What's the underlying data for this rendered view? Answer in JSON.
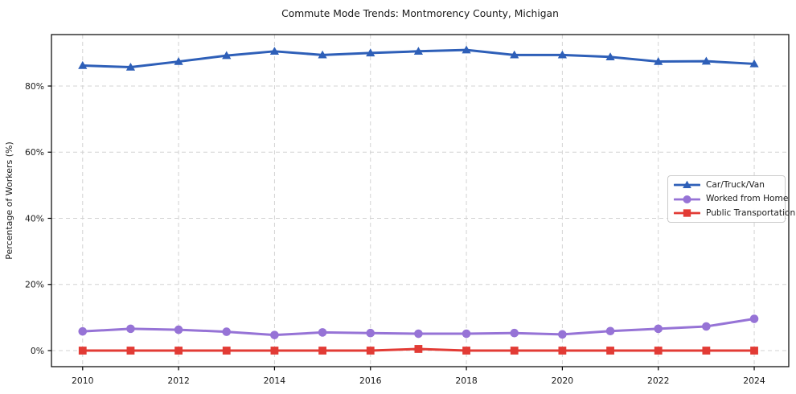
{
  "chart_data": {
    "type": "line",
    "title": "Commute Mode Trends: Montmorency County, Michigan",
    "xlabel": "",
    "ylabel": "Percentage of Workers (%)",
    "x": [
      2010,
      2011,
      2012,
      2013,
      2014,
      2015,
      2016,
      2017,
      2018,
      2019,
      2020,
      2021,
      2022,
      2023,
      2024
    ],
    "x_ticks": [
      2010,
      2012,
      2014,
      2016,
      2018,
      2020,
      2022,
      2024
    ],
    "y_ticks": [
      0,
      20,
      40,
      60,
      80
    ],
    "y_tick_suffix": "%",
    "xlim": [
      2009.35,
      2024.72
    ],
    "ylim": [
      -4.86,
      95.56
    ],
    "grid": true,
    "legend_position": "center-right",
    "series": [
      {
        "name": "Car/Truck/Van",
        "color": "#2e5fb8",
        "marker": "triangle",
        "values": [
          86.2,
          85.7,
          87.4,
          89.2,
          90.5,
          89.4,
          90.0,
          90.5,
          90.9,
          89.4,
          89.4,
          88.8,
          87.4,
          87.5,
          86.7
        ]
      },
      {
        "name": "Worked from Home",
        "color": "#9673d6",
        "marker": "circle",
        "values": [
          5.8,
          6.6,
          6.3,
          5.7,
          4.7,
          5.5,
          5.3,
          5.1,
          5.1,
          5.3,
          4.9,
          5.9,
          6.6,
          7.3,
          9.6
        ]
      },
      {
        "name": "Public Transportation",
        "color": "#e23b35",
        "marker": "square",
        "values": [
          0.0,
          0.0,
          0.0,
          0.0,
          0.0,
          0.0,
          0.0,
          0.5,
          0.0,
          0.0,
          0.0,
          0.0,
          0.0,
          0.0,
          0.0
        ]
      }
    ],
    "style": {
      "grid_color": "#d3d3d3",
      "frame_color": "#000000",
      "text_color": "#1a1a1a",
      "background": "#ffffff"
    }
  }
}
